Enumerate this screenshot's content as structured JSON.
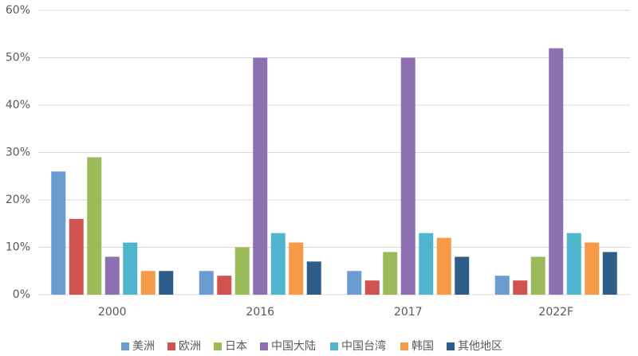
{
  "chart_data": {
    "type": "bar",
    "categories": [
      "2000",
      "2016",
      "2017",
      "2022F"
    ],
    "series": [
      {
        "name": "美洲",
        "color": "#6a9bd1",
        "values": [
          26,
          5,
          5,
          4
        ]
      },
      {
        "name": "欧洲",
        "color": "#d1534f",
        "values": [
          16,
          4,
          3,
          3
        ]
      },
      {
        "name": "日本",
        "color": "#9bbb5a",
        "values": [
          29,
          10,
          9,
          8
        ]
      },
      {
        "name": "中国大陆",
        "color": "#8c70b2",
        "values": [
          8,
          50,
          50,
          52
        ]
      },
      {
        "name": "中国台湾",
        "color": "#4fb5cf",
        "values": [
          11,
          13,
          13,
          13
        ]
      },
      {
        "name": "韩国",
        "color": "#f79a48",
        "values": [
          5,
          11,
          12,
          11
        ]
      },
      {
        "name": "其他地区",
        "color": "#2f5d8a",
        "values": [
          5,
          7,
          8,
          9
        ]
      }
    ],
    "ylim": [
      0,
      60
    ],
    "yticks": [
      {
        "value": 0,
        "label": "0%"
      },
      {
        "value": 10,
        "label": "10%"
      },
      {
        "value": 20,
        "label": "20%"
      },
      {
        "value": 30,
        "label": "30%"
      },
      {
        "value": 40,
        "label": "40%"
      },
      {
        "value": 50,
        "label": "50%"
      },
      {
        "value": 60,
        "label": "60%"
      }
    ],
    "grid": true,
    "legend": "bottom"
  }
}
